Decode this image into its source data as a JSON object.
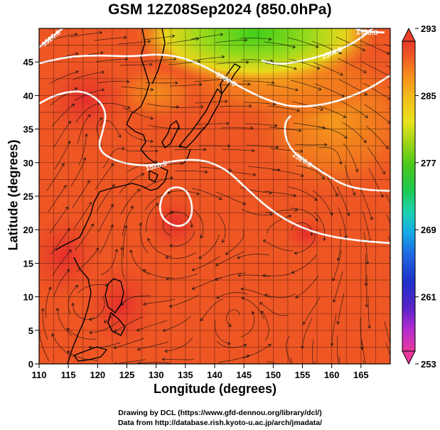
{
  "title": "GSM 12Z08Sep2024 (850.0hPa)",
  "chart_data": {
    "type": "heatmap",
    "title": "GSM 12Z08Sep2024 (850.0hPa)",
    "xlabel": "Longitude (degrees)",
    "ylabel": "Latitude  (degrees)",
    "xlim": [
      110,
      170
    ],
    "ylim": [
      0,
      50
    ],
    "x_ticks": [
      "110",
      "115",
      "120",
      "125",
      "130",
      "135",
      "140",
      "145",
      "150",
      "155",
      "160",
      "165"
    ],
    "y_ticks": [
      "0",
      "5",
      "10",
      "15",
      "20",
      "25",
      "30",
      "35",
      "40",
      "45"
    ],
    "grid": true,
    "colorbar": {
      "min": 253,
      "max": 293,
      "tick_labels": [
        "293",
        "285",
        "277",
        "269",
        "261",
        "253"
      ],
      "colors": [
        "#e8389a",
        "#b42bd0",
        "#5a23c8",
        "#1f2fc8",
        "#1f66e0",
        "#14a8e8",
        "#1ed2b0",
        "#1ec850",
        "#4ac81c",
        "#9ad418",
        "#e8e21c",
        "#f4bc1c",
        "#f48c1c",
        "#f05a24",
        "#e83a2a"
      ]
    },
    "contours": [
      {
        "label": "1500.0",
        "points": [
          [
            110,
            44.8
          ],
          [
            115,
            45.8
          ],
          [
            120,
            46
          ],
          [
            126,
            45.8
          ],
          [
            130,
            46.2
          ],
          [
            134,
            45.8
          ],
          [
            138,
            44.5
          ],
          [
            142,
            42.5
          ],
          [
            146,
            40.5
          ],
          [
            150,
            39
          ],
          [
            154,
            38.2
          ],
          [
            160,
            38.8
          ],
          [
            166,
            40.8
          ],
          [
            170,
            43
          ]
        ]
      },
      {
        "label": "1500.0",
        "points": [
          [
            148,
            45.2
          ],
          [
            151,
            44.6
          ],
          [
            154,
            45
          ],
          [
            157,
            45.6
          ],
          [
            160,
            46.4
          ],
          [
            163,
            47.5
          ],
          [
            165,
            48.6
          ],
          [
            167,
            50
          ]
        ]
      },
      {
        "label": "1520.0",
        "points": [
          [
            110,
            38.8
          ],
          [
            113,
            40.2
          ],
          [
            117,
            40.8
          ],
          [
            120,
            39.6
          ],
          [
            121.5,
            37.5
          ],
          [
            121,
            35
          ],
          [
            120,
            32.2
          ],
          [
            122,
            30.6
          ],
          [
            126,
            29.6
          ],
          [
            130,
            29.6
          ],
          [
            133,
            30.3
          ],
          [
            138,
            30.5
          ],
          [
            142,
            29
          ],
          [
            145,
            26.5
          ],
          [
            149,
            23.3
          ],
          [
            153,
            21
          ],
          [
            158,
            19.3
          ],
          [
            164,
            18.4
          ],
          [
            170,
            18
          ]
        ]
      },
      {
        "label": "1520.0",
        "points": [
          [
            110,
            47.2
          ],
          [
            112,
            48.6
          ],
          [
            114,
            50
          ]
        ]
      },
      {
        "label": "1520.0",
        "points": [
          [
            164,
            50
          ],
          [
            166,
            49.5
          ],
          [
            169,
            49.4
          ]
        ]
      },
      {
        "label": "1520.0",
        "points": [
          [
            153,
            37
          ],
          [
            152,
            36
          ],
          [
            152,
            34
          ],
          [
            153,
            32
          ],
          [
            155,
            30.5
          ],
          [
            158,
            28.8
          ],
          [
            162,
            26.6
          ],
          [
            166,
            25.9
          ],
          [
            170,
            25.8
          ]
        ]
      },
      {
        "label": "",
        "points": [
          [
            131,
            24.8
          ],
          [
            132.5,
            26.4
          ],
          [
            135,
            26.2
          ],
          [
            136.2,
            24
          ],
          [
            136,
            21.5
          ],
          [
            134,
            20.3
          ],
          [
            131.5,
            21.2
          ],
          [
            130.5,
            23
          ],
          [
            131,
            24.8
          ]
        ]
      }
    ]
  }
}
